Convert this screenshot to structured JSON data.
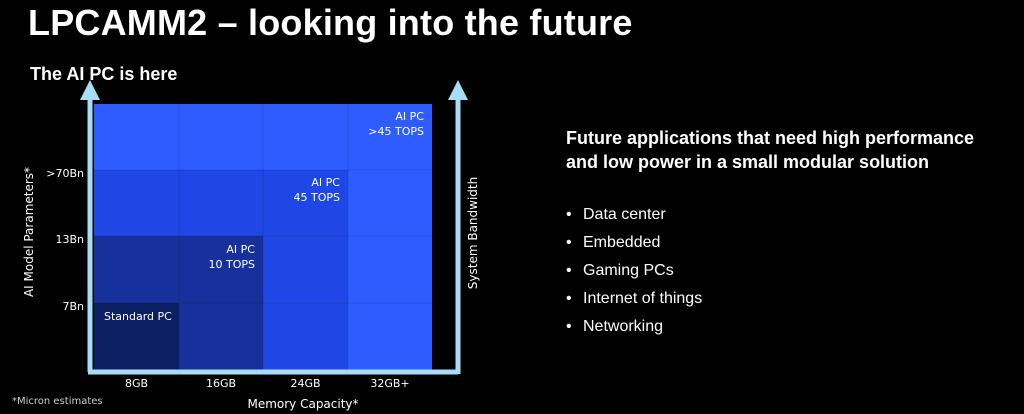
{
  "title": "LPCAMM2 – looking into the future",
  "subtitle": "The AI PC is here",
  "colors": {
    "background": "#000000",
    "axis": "#a9ddf7",
    "tier1": "#0d1f63",
    "tier2": "#18309c",
    "tier3": "#1f47e6",
    "tier4": "#2e5cff"
  },
  "chart_data": {
    "type": "nested-area",
    "xlabel": "Memory Capacity*",
    "ylabel": "AI Model Parameters*",
    "y2label": "System Bandwidth",
    "x_ticks": [
      "8GB",
      "16GB",
      "24GB",
      "32GB+"
    ],
    "y_ticks": [
      "7Bn",
      "13Bn",
      ">70Bn"
    ],
    "tiers": [
      {
        "line1": "AI PC",
        "line2": ">45 TOPS",
        "x_index": 3,
        "y_index": 3
      },
      {
        "line1": "AI PC",
        "line2": "45 TOPS",
        "x_index": 2,
        "y_index": 2
      },
      {
        "line1": "AI PC",
        "line2": "10 TOPS",
        "x_index": 1,
        "y_index": 1
      },
      {
        "line1": "Standard PC",
        "line2": "",
        "x_index": 0,
        "y_index": 0
      }
    ]
  },
  "right_panel": {
    "heading_line1": "Future applications that need high performance",
    "heading_line2": "and low power in a small modular solution",
    "bullets": [
      "Data center",
      "Embedded",
      "Gaming PCs",
      "Internet of things",
      "Networking"
    ]
  },
  "footnote": "*Micron estimates"
}
